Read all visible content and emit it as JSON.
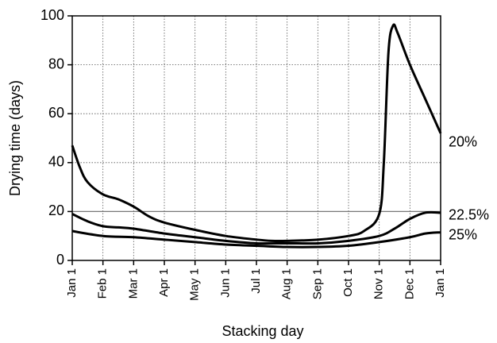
{
  "chart_data": {
    "type": "line",
    "xlabel": "Stacking day",
    "ylabel": "Drying time (days)",
    "xlim": [
      0,
      12
    ],
    "ylim": [
      0,
      100
    ],
    "xticks": [
      {
        "value": 0,
        "label": "Jan 1"
      },
      {
        "value": 1,
        "label": "Feb 1"
      },
      {
        "value": 2,
        "label": "Mar 1"
      },
      {
        "value": 3,
        "label": "Apr 1"
      },
      {
        "value": 4,
        "label": "May 1"
      },
      {
        "value": 5,
        "label": "Jun 1"
      },
      {
        "value": 6,
        "label": "Jul 1"
      },
      {
        "value": 7,
        "label": "Aug 1"
      },
      {
        "value": 8,
        "label": "Sep 1"
      },
      {
        "value": 9,
        "label": "Oct 1"
      },
      {
        "value": 10,
        "label": "Nov 1"
      },
      {
        "value": 11,
        "label": "Dec 1"
      },
      {
        "value": 12,
        "label": "Jan 1"
      }
    ],
    "yticks": [
      0,
      20,
      40,
      60,
      80,
      100
    ],
    "grid": true,
    "hline": 20,
    "color": "#000000",
    "series": [
      {
        "name": "20%",
        "color": "#000000",
        "x": [
          0,
          0.25,
          0.5,
          1,
          1.5,
          2,
          2.5,
          3,
          4,
          5,
          6,
          6.5,
          7,
          8,
          9,
          9.5,
          10,
          10.15,
          10.3,
          10.45,
          10.6,
          11,
          11.5,
          12
        ],
        "values": [
          47,
          38,
          32,
          27,
          25,
          22,
          18,
          15.5,
          12.5,
          10,
          8.5,
          8,
          8,
          8.5,
          10,
          12,
          19,
          40,
          85,
          96,
          93,
          80,
          66,
          52
        ]
      },
      {
        "name": "22.5%",
        "color": "#000000",
        "x": [
          0,
          0.5,
          1,
          1.5,
          2,
          3,
          4,
          5,
          6,
          7,
          8,
          9,
          10,
          10.5,
          11,
          11.5,
          12
        ],
        "values": [
          19,
          16,
          14,
          13.5,
          13,
          11,
          9.5,
          8,
          7,
          7,
          7,
          8,
          10,
          13,
          17,
          19.5,
          19.5
        ]
      },
      {
        "name": "25%",
        "color": "#000000",
        "x": [
          0,
          1,
          2,
          3,
          4,
          5,
          6,
          7,
          8,
          9,
          10,
          11,
          11.5,
          12
        ],
        "values": [
          12,
          10,
          9.5,
          8.5,
          7.5,
          6.5,
          6,
          5.5,
          5.5,
          6,
          7.5,
          9.5,
          11,
          11.5
        ]
      }
    ]
  }
}
